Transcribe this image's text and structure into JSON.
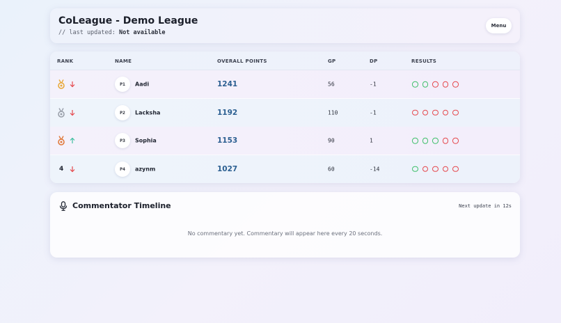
{
  "header": {
    "title": "CoLeague - Demo League",
    "updated_prefix": "// last updated: ",
    "updated_value": "Not available",
    "menu_label": "Menu"
  },
  "table": {
    "columns": {
      "rank": "RANK",
      "name": "NAME",
      "points": "OVERALL POINTS",
      "gp": "GP",
      "dp": "DP",
      "results": "RESULTS"
    },
    "rows": [
      {
        "rank_icon": "gold-medal-icon",
        "rank_label": "",
        "trend": "down",
        "badge": "P1",
        "name": "Aadi",
        "points": "1241",
        "gp": "56",
        "dp": "-1",
        "results": [
          "win",
          "win",
          "loss",
          "loss",
          "loss"
        ]
      },
      {
        "rank_icon": "silver-medal-icon",
        "rank_label": "",
        "trend": "down",
        "badge": "P2",
        "name": "Lacksha",
        "points": "1192",
        "gp": "110",
        "dp": "-1",
        "results": [
          "loss",
          "loss",
          "loss",
          "loss",
          "loss"
        ]
      },
      {
        "rank_icon": "bronze-medal-icon",
        "rank_label": "",
        "trend": "up",
        "badge": "P3",
        "name": "Sophia",
        "points": "1153",
        "gp": "90",
        "dp": "1",
        "results": [
          "win",
          "win",
          "win",
          "loss",
          "loss"
        ]
      },
      {
        "rank_icon": "",
        "rank_label": "4",
        "trend": "down",
        "badge": "P4",
        "name": "azynm",
        "points": "1027",
        "gp": "60",
        "dp": "-14",
        "results": [
          "win",
          "loss",
          "loss",
          "loss",
          "loss"
        ]
      }
    ]
  },
  "commentator": {
    "title": "Commentator Timeline",
    "next_update": "Next update in 12s",
    "empty_message": "No commentary yet. Commentary will appear here every 20 seconds.",
    "icon": "microphone-icon"
  },
  "colors": {
    "win": "#3fbf6a",
    "loss": "#e5484d",
    "gold": "#e8a93a",
    "silver": "#9aa0aa",
    "bronze": "#e07a3c",
    "trend_up": "#3fbfa0",
    "trend_down": "#e5484d"
  }
}
